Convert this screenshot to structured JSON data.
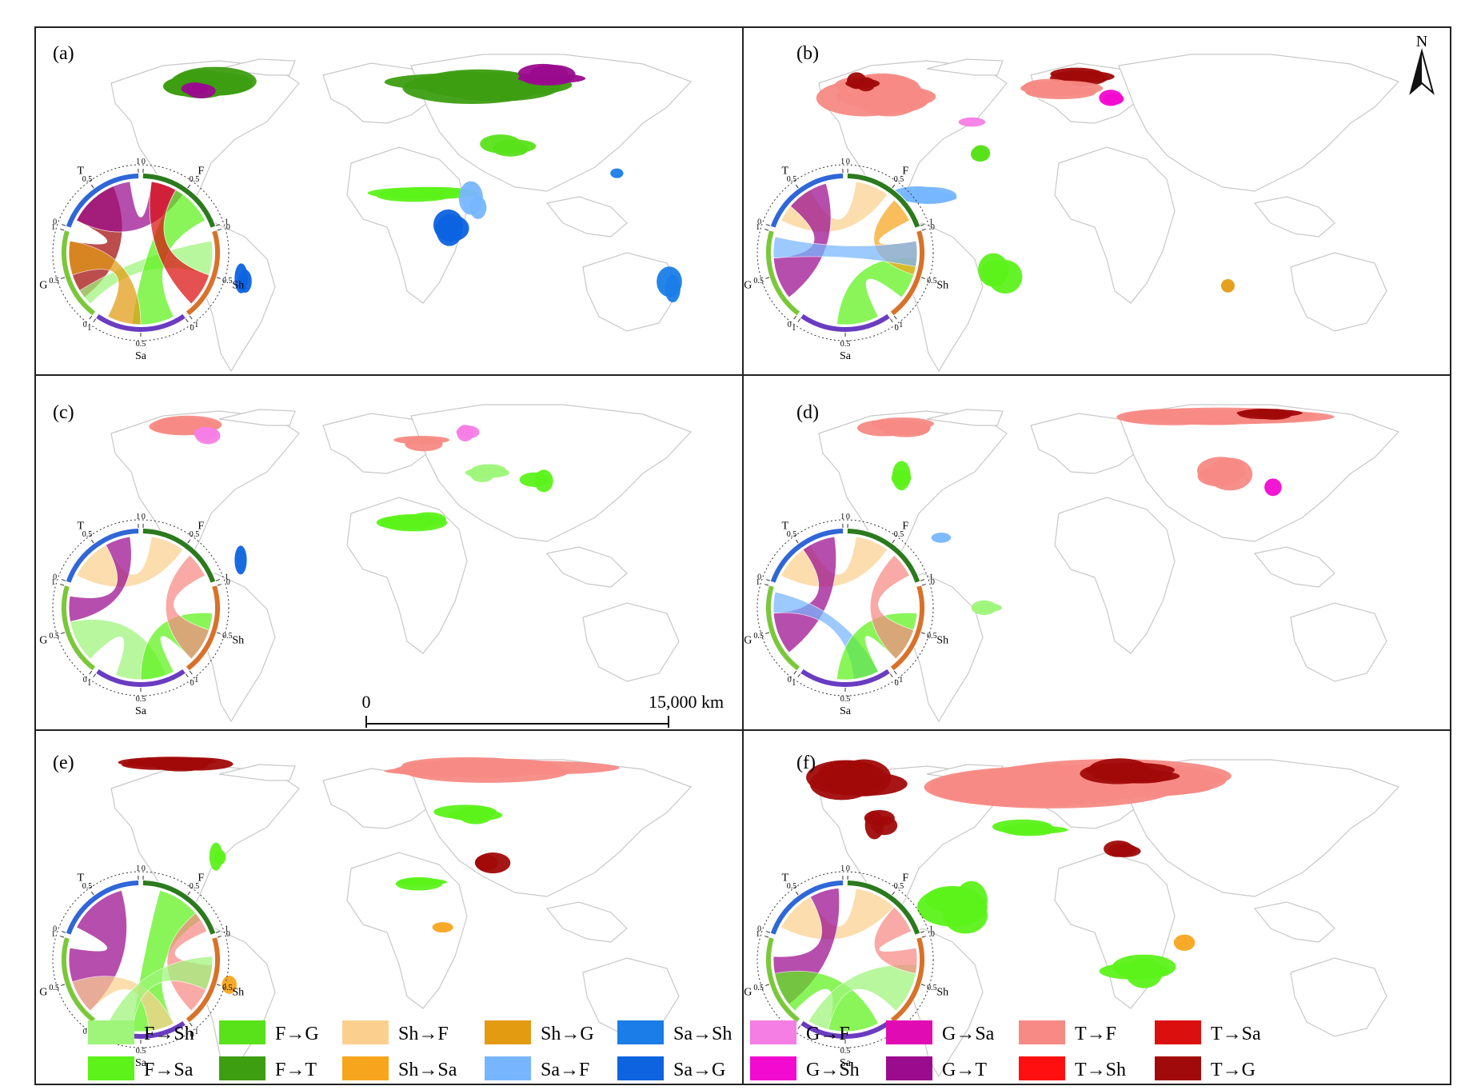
{
  "panels": [
    {
      "label": "(a)",
      "key": "a"
    },
    {
      "label": "(b)",
      "key": "b"
    },
    {
      "label": "(c)",
      "key": "c"
    },
    {
      "label": "(d)",
      "key": "d"
    },
    {
      "label": "(e)",
      "key": "e"
    },
    {
      "label": "(f)",
      "key": "f"
    }
  ],
  "chord_axes": {
    "segments": [
      "T",
      "F",
      "Sh",
      "Sa",
      "G"
    ],
    "tick_start": "0",
    "tick_mid": "0.5",
    "tick_end": "1"
  },
  "scale_bar": {
    "start_label": "0",
    "end_label": "15,000 km"
  },
  "north_arrow": {
    "label": "N"
  },
  "legend": [
    {
      "label": "F→Sh",
      "color": "#9ef57a"
    },
    {
      "label": "F→Sa",
      "color": "#5cf21a"
    },
    {
      "label": "F→G",
      "color": "#59e21a"
    },
    {
      "label": "F→T",
      "color": "#3d9e12"
    },
    {
      "label": "Sh→F",
      "color": "#fbd08f"
    },
    {
      "label": "Sh→Sa",
      "color": "#f7a51d"
    },
    {
      "label": "Sh→G",
      "color": "#e39b12"
    },
    {
      "label": "Sa→F",
      "color": "#77b6ff"
    },
    {
      "label": "Sa→Sh",
      "color": "#1a7de8"
    },
    {
      "label": "Sa→G",
      "color": "#0d63e0"
    },
    {
      "label": "G→F",
      "color": "#f57ee5"
    },
    {
      "label": "G→Sh",
      "color": "#f20ad0"
    },
    {
      "label": "G→Sa",
      "color": "#e10bb4"
    },
    {
      "label": "G→T",
      "color": "#9a0b8e"
    },
    {
      "label": "T→F",
      "color": "#f78a84"
    },
    {
      "label": "T→Sh",
      "color": "#ff0f0f"
    },
    {
      "label": "T→Sa",
      "color": "#dc0f0f"
    },
    {
      "label": "T→G",
      "color": "#a10a0a"
    }
  ],
  "chord_colors": {
    "T": "#2f66d8",
    "F": "#2b7a1e",
    "Sh": "#d8722a",
    "Sa": "#6a3cc0",
    "G": "#7ac83a"
  }
}
